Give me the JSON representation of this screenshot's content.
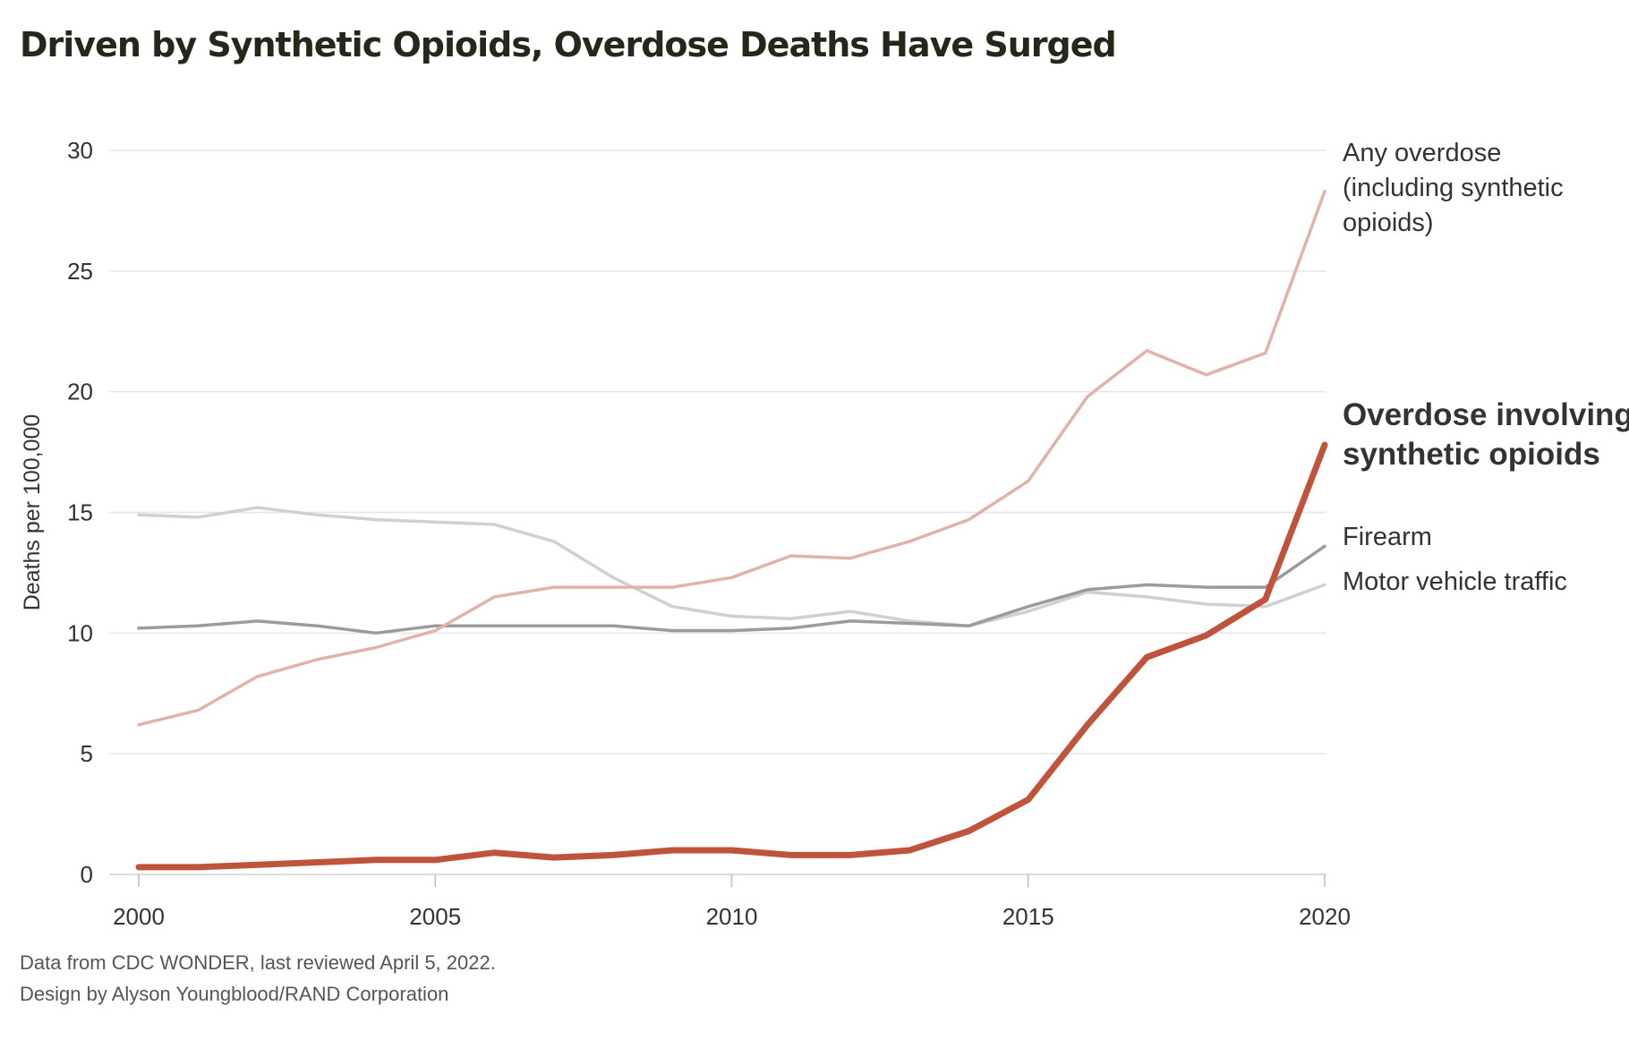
{
  "header": {
    "title": "Driven by Synthetic Opioids, Overdose Deaths Have Surged"
  },
  "footer": {
    "source": "Data from CDC WONDER, last reviewed April 5, 2022.",
    "credit": "Design by Alyson Youngblood/RAND Corporation"
  },
  "chart_data": {
    "type": "line",
    "title": "Driven by Synthetic Opioids, Overdose Deaths Have Surged",
    "xlabel": "",
    "ylabel": "Deaths per 100,000",
    "xlim": [
      2000,
      2020
    ],
    "ylim": [
      0,
      30
    ],
    "x_ticks": [
      2000,
      2005,
      2010,
      2015,
      2020
    ],
    "y_ticks": [
      0,
      5,
      10,
      15,
      20,
      25,
      30
    ],
    "grid": "horizontal",
    "legend": "direct labels at right end of lines",
    "x": [
      2000,
      2001,
      2002,
      2003,
      2004,
      2005,
      2006,
      2007,
      2008,
      2009,
      2010,
      2011,
      2012,
      2013,
      2014,
      2015,
      2016,
      2017,
      2018,
      2019,
      2020
    ],
    "series": [
      {
        "name": "Motor vehicle traffic",
        "label_lines": [
          "Motor vehicle traffic"
        ],
        "color": "#d0d0d0",
        "emphasis": false,
        "values": [
          14.9,
          14.8,
          15.2,
          14.9,
          14.7,
          14.6,
          14.5,
          13.8,
          12.3,
          11.1,
          10.7,
          10.6,
          10.9,
          10.5,
          10.3,
          10.9,
          11.7,
          11.5,
          11.2,
          11.1,
          12.0
        ]
      },
      {
        "name": "Firearm",
        "label_lines": [
          "Firearm"
        ],
        "color": "#9b9b9b",
        "emphasis": false,
        "values": [
          10.2,
          10.3,
          10.5,
          10.3,
          10.0,
          10.3,
          10.3,
          10.3,
          10.3,
          10.1,
          10.1,
          10.2,
          10.5,
          10.4,
          10.3,
          11.1,
          11.8,
          12.0,
          11.9,
          11.9,
          13.6
        ]
      },
      {
        "name": "Any overdose (including synthetic opioids)",
        "label_lines": [
          "Any overdose",
          "(including synthetic",
          "opioids)"
        ],
        "color": "#e1b3a8",
        "emphasis": false,
        "values": [
          6.2,
          6.8,
          8.2,
          8.9,
          9.4,
          10.1,
          11.5,
          11.9,
          11.9,
          11.9,
          12.3,
          13.2,
          13.1,
          13.8,
          14.7,
          16.3,
          19.8,
          21.7,
          20.7,
          21.6,
          28.3
        ]
      },
      {
        "name": "Overdose involving synthetic opioids",
        "label_lines": [
          "Overdose involving",
          "synthetic opioids"
        ],
        "color": "#c0533b",
        "emphasis": true,
        "values": [
          0.3,
          0.3,
          0.4,
          0.5,
          0.6,
          0.6,
          0.9,
          0.7,
          0.8,
          1.0,
          1.0,
          0.8,
          0.8,
          1.0,
          1.8,
          3.1,
          6.2,
          9.0,
          9.9,
          11.4,
          17.8
        ]
      }
    ]
  }
}
